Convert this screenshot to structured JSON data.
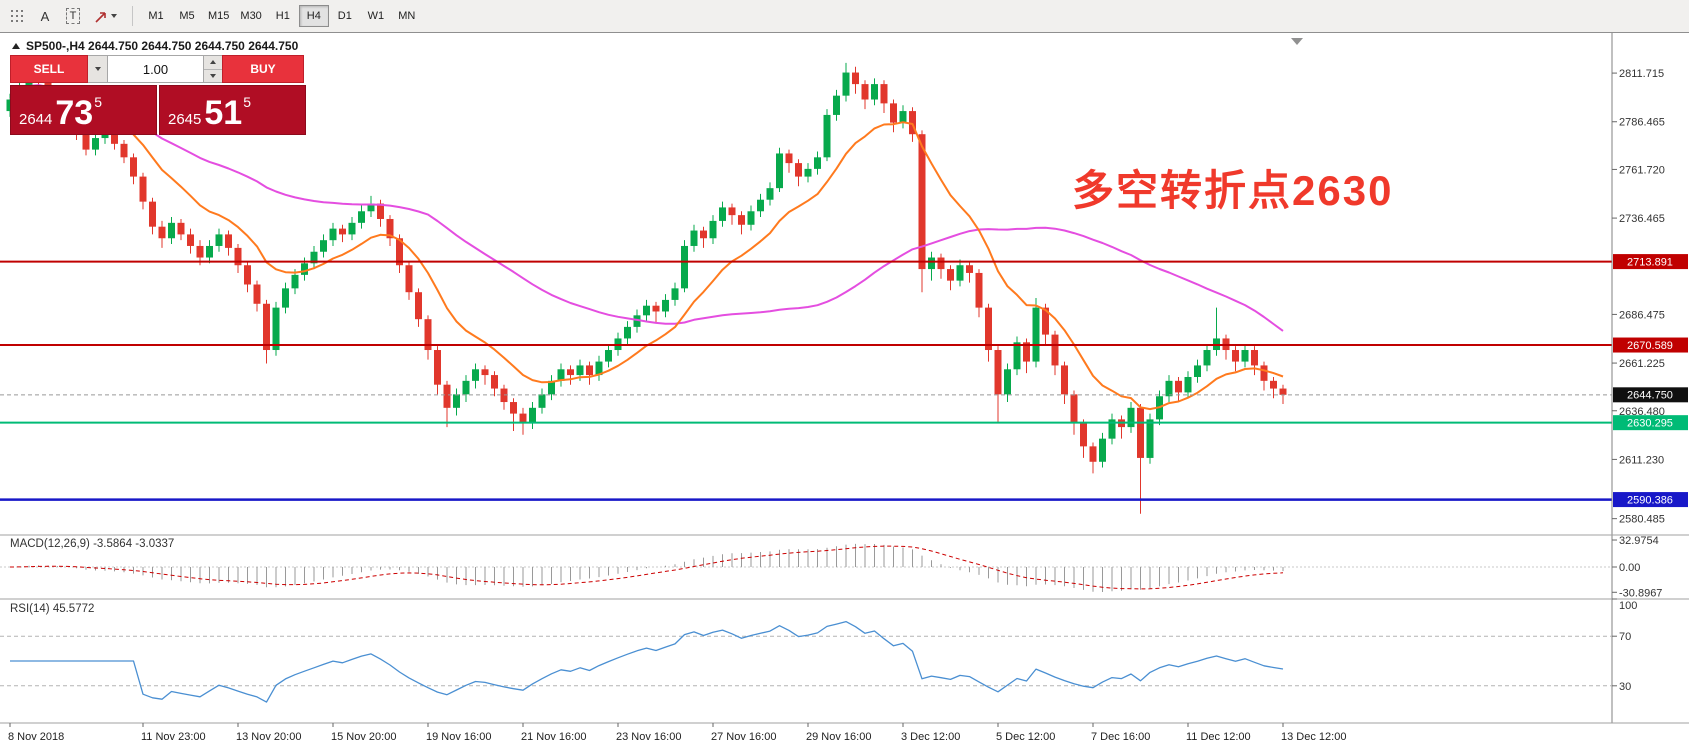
{
  "toolbar": {
    "label_tool": "A",
    "text_tool": "T",
    "timeframes": [
      "M1",
      "M5",
      "M15",
      "M30",
      "H1",
      "H4",
      "D1",
      "W1",
      "MN"
    ],
    "active_timeframe": "H4"
  },
  "chart": {
    "header_text": "SP500-,H4  2644.750 2644.750 2644.750 2644.750"
  },
  "trade_panel": {
    "sell_label": "SELL",
    "buy_label": "BUY",
    "volume": "1.00",
    "bid": {
      "big": "2644",
      "pips": "73",
      "frac": "5"
    },
    "ask": {
      "big": "2645",
      "pips": "51",
      "frac": "5"
    }
  },
  "annotation": {
    "text": "多空转折点2630",
    "color": "#f0392b"
  },
  "indicator_labels": {
    "macd": "MACD(12,26,9) -3.5864 -3.0337",
    "rsi": "RSI(14) 45.5772"
  },
  "colors": {
    "sell_buy_button": "#e8323c",
    "price_box": "#b00d24",
    "bull": "#07a94c",
    "bear": "#e1372c",
    "hline_red": "#c00000",
    "hline_green": "#00bb76",
    "hline_blue": "#1818c8",
    "annotation_red": "#f0392b",
    "macd_signal": "#cc0000",
    "rsi_line": "#4a8fd2"
  },
  "chart_data": {
    "type": "candlestick",
    "symbol": "SP500-",
    "timeframe": "H4",
    "last_price": "2644.750",
    "price_range": [
      2572,
      2832
    ],
    "price_ticks": [
      "2811.715",
      "2786.465",
      "2761.720",
      "2736.465",
      "2686.475",
      "2661.225",
      "2636.480",
      "2611.230",
      "2580.485"
    ],
    "hlines": [
      {
        "price": 2713.891,
        "label": "2713.891",
        "color": "#c00000",
        "width": 2
      },
      {
        "price": 2670.589,
        "label": "2670.589",
        "color": "#c00000",
        "width": 2
      },
      {
        "price": 2630.295,
        "label": "2630.295",
        "color": "#00bb76",
        "width": 2
      },
      {
        "price": 2590.386,
        "label": "2590.386",
        "color": "#1818c8",
        "width": 2.5
      }
    ],
    "current_price": {
      "price": 2644.75,
      "label": "2644.750",
      "color": "#101010"
    },
    "moving_averages": [
      {
        "period": 45,
        "method": "sma",
        "color": "#e44ee0"
      },
      {
        "period": 12,
        "method": "ema",
        "color": "#ff7a1e"
      }
    ],
    "macd": {
      "params": "12,26,9",
      "values": [
        "-3.5864",
        "-3.0337"
      ],
      "axis_ticks": [
        "32.9754",
        "0.00",
        "-30.8967"
      ],
      "range": 33
    },
    "rsi": {
      "period": 14,
      "value": "45.5772",
      "axis_ticks": [
        "100",
        "70",
        "30"
      ],
      "levels": [
        70,
        30
      ]
    },
    "time_labels": [
      {
        "label": "8 Nov 2018",
        "bar": 0
      },
      {
        "label": "11 Nov 23:00",
        "bar": 14
      },
      {
        "label": "13 Nov 20:00",
        "bar": 24
      },
      {
        "label": "15 Nov 20:00",
        "bar": 34
      },
      {
        "label": "19 Nov 16:00",
        "bar": 44
      },
      {
        "label": "21 Nov 16:00",
        "bar": 54
      },
      {
        "label": "23 Nov 16:00",
        "bar": 64
      },
      {
        "label": "27 Nov 16:00",
        "bar": 74
      },
      {
        "label": "29 Nov 16:00",
        "bar": 84
      },
      {
        "label": "3 Dec 12:00",
        "bar": 94
      },
      {
        "label": "5 Dec 12:00",
        "bar": 104
      },
      {
        "label": "7 Dec 16:00",
        "bar": 114
      },
      {
        "label": "11 Dec 12:00",
        "bar": 124
      },
      {
        "label": "13 Dec 12:00",
        "bar": 134
      }
    ],
    "candles": [
      [
        2792,
        2801,
        2789,
        2798
      ],
      [
        2798,
        2808,
        2795,
        2805
      ],
      [
        2805,
        2815,
        2802,
        2812
      ],
      [
        2812,
        2814,
        2803,
        2807
      ],
      [
        2807,
        2810,
        2798,
        2801
      ],
      [
        2801,
        2804,
        2793,
        2796
      ],
      [
        2796,
        2798,
        2785,
        2788
      ],
      [
        2788,
        2791,
        2777,
        2780
      ],
      [
        2780,
        2783,
        2769,
        2772
      ],
      [
        2772,
        2781,
        2769,
        2778
      ],
      [
        2778,
        2784,
        2775,
        2781
      ],
      [
        2781,
        2783,
        2772,
        2775
      ],
      [
        2775,
        2777,
        2765,
        2768
      ],
      [
        2768,
        2770,
        2754,
        2758
      ],
      [
        2758,
        2760,
        2741,
        2745
      ],
      [
        2745,
        2747,
        2728,
        2732
      ],
      [
        2732,
        2735,
        2721,
        2726
      ],
      [
        2726,
        2737,
        2723,
        2734
      ],
      [
        2734,
        2736,
        2725,
        2728
      ],
      [
        2728,
        2731,
        2718,
        2722
      ],
      [
        2722,
        2725,
        2712,
        2716
      ],
      [
        2716,
        2725,
        2713,
        2722
      ],
      [
        2722,
        2731,
        2719,
        2728
      ],
      [
        2728,
        2730,
        2717,
        2721
      ],
      [
        2721,
        2723,
        2708,
        2712
      ],
      [
        2712,
        2714,
        2698,
        2702
      ],
      [
        2702,
        2704,
        2688,
        2692
      ],
      [
        2692,
        2694,
        2661,
        2668
      ],
      [
        2668,
        2693,
        2665,
        2690
      ],
      [
        2690,
        2703,
        2687,
        2700
      ],
      [
        2700,
        2710,
        2697,
        2707
      ],
      [
        2707,
        2716,
        2704,
        2713
      ],
      [
        2713,
        2722,
        2710,
        2719
      ],
      [
        2719,
        2728,
        2716,
        2725
      ],
      [
        2725,
        2734,
        2722,
        2731
      ],
      [
        2731,
        2733,
        2724,
        2728
      ],
      [
        2728,
        2737,
        2725,
        2734
      ],
      [
        2734,
        2743,
        2731,
        2740
      ],
      [
        2740,
        2748,
        2737,
        2744
      ],
      [
        2744,
        2746,
        2732,
        2736
      ],
      [
        2736,
        2738,
        2722,
        2726
      ],
      [
        2726,
        2728,
        2708,
        2712
      ],
      [
        2712,
        2714,
        2694,
        2698
      ],
      [
        2698,
        2700,
        2680,
        2684
      ],
      [
        2684,
        2686,
        2663,
        2668
      ],
      [
        2668,
        2670,
        2645,
        2650
      ],
      [
        2650,
        2652,
        2628,
        2638
      ],
      [
        2638,
        2648,
        2634,
        2645
      ],
      [
        2645,
        2655,
        2641,
        2652
      ],
      [
        2652,
        2661,
        2648,
        2658
      ],
      [
        2658,
        2660,
        2650,
        2655
      ],
      [
        2655,
        2657,
        2644,
        2648
      ],
      [
        2648,
        2650,
        2637,
        2641
      ],
      [
        2641,
        2643,
        2626,
        2635
      ],
      [
        2635,
        2638,
        2624,
        2630
      ],
      [
        2630,
        2641,
        2627,
        2638
      ],
      [
        2638,
        2648,
        2635,
        2645
      ],
      [
        2645,
        2655,
        2642,
        2652
      ],
      [
        2652,
        2661,
        2649,
        2658
      ],
      [
        2658,
        2660,
        2650,
        2655
      ],
      [
        2655,
        2663,
        2652,
        2660
      ],
      [
        2660,
        2662,
        2650,
        2655
      ],
      [
        2655,
        2665,
        2652,
        2662
      ],
      [
        2662,
        2671,
        2659,
        2668
      ],
      [
        2668,
        2677,
        2665,
        2674
      ],
      [
        2674,
        2683,
        2671,
        2680
      ],
      [
        2680,
        2689,
        2677,
        2686
      ],
      [
        2686,
        2694,
        2683,
        2691
      ],
      [
        2691,
        2693,
        2682,
        2688
      ],
      [
        2688,
        2697,
        2685,
        2694
      ],
      [
        2694,
        2703,
        2691,
        2700
      ],
      [
        2700,
        2725,
        2698,
        2722
      ],
      [
        2722,
        2733,
        2719,
        2730
      ],
      [
        2730,
        2732,
        2721,
        2726
      ],
      [
        2726,
        2738,
        2723,
        2735
      ],
      [
        2735,
        2745,
        2732,
        2742
      ],
      [
        2742,
        2744,
        2733,
        2738
      ],
      [
        2738,
        2740,
        2728,
        2733
      ],
      [
        2733,
        2743,
        2730,
        2740
      ],
      [
        2740,
        2749,
        2737,
        2746
      ],
      [
        2746,
        2755,
        2743,
        2752
      ],
      [
        2752,
        2773,
        2750,
        2770
      ],
      [
        2770,
        2772,
        2760,
        2765
      ],
      [
        2765,
        2767,
        2753,
        2758
      ],
      [
        2758,
        2765,
        2755,
        2762
      ],
      [
        2762,
        2771,
        2759,
        2768
      ],
      [
        2768,
        2793,
        2766,
        2790
      ],
      [
        2790,
        2803,
        2787,
        2800
      ],
      [
        2800,
        2817,
        2797,
        2812
      ],
      [
        2812,
        2815,
        2801,
        2806
      ],
      [
        2806,
        2808,
        2793,
        2798
      ],
      [
        2798,
        2809,
        2795,
        2806
      ],
      [
        2806,
        2808,
        2791,
        2796
      ],
      [
        2796,
        2798,
        2781,
        2786
      ],
      [
        2786,
        2795,
        2783,
        2792
      ],
      [
        2792,
        2794,
        2776,
        2780
      ],
      [
        2780,
        2782,
        2698,
        2710
      ],
      [
        2710,
        2719,
        2704,
        2716
      ],
      [
        2716,
        2718,
        2705,
        2710
      ],
      [
        2710,
        2712,
        2699,
        2704
      ],
      [
        2704,
        2715,
        2701,
        2712
      ],
      [
        2712,
        2714,
        2703,
        2708
      ],
      [
        2708,
        2710,
        2685,
        2690
      ],
      [
        2690,
        2692,
        2662,
        2668
      ],
      [
        2668,
        2670,
        2630,
        2645
      ],
      [
        2645,
        2661,
        2641,
        2658
      ],
      [
        2658,
        2675,
        2655,
        2672
      ],
      [
        2672,
        2674,
        2656,
        2662
      ],
      [
        2662,
        2695,
        2659,
        2690
      ],
      [
        2690,
        2692,
        2671,
        2676
      ],
      [
        2676,
        2678,
        2655,
        2660
      ],
      [
        2660,
        2662,
        2640,
        2645
      ],
      [
        2645,
        2647,
        2624,
        2630
      ],
      [
        2630,
        2632,
        2612,
        2618
      ],
      [
        2618,
        2620,
        2604,
        2610
      ],
      [
        2610,
        2625,
        2607,
        2622
      ],
      [
        2622,
        2635,
        2619,
        2632
      ],
      [
        2632,
        2634,
        2622,
        2628
      ],
      [
        2628,
        2641,
        2625,
        2638
      ],
      [
        2638,
        2640,
        2583,
        2612
      ],
      [
        2612,
        2635,
        2609,
        2632
      ],
      [
        2632,
        2647,
        2629,
        2644
      ],
      [
        2644,
        2655,
        2641,
        2652
      ],
      [
        2652,
        2654,
        2641,
        2646
      ],
      [
        2646,
        2657,
        2643,
        2654
      ],
      [
        2654,
        2663,
        2651,
        2660
      ],
      [
        2660,
        2671,
        2657,
        2668
      ],
      [
        2668,
        2690,
        2665,
        2674
      ],
      [
        2674,
        2676,
        2663,
        2668
      ],
      [
        2668,
        2670,
        2657,
        2662
      ],
      [
        2662,
        2671,
        2659,
        2668
      ],
      [
        2668,
        2670,
        2655,
        2660
      ],
      [
        2660,
        2662,
        2647,
        2652
      ],
      [
        2652,
        2654,
        2643,
        2648
      ],
      [
        2648,
        2650,
        2640,
        2644.75
      ]
    ],
    "colors": {
      "bull": "#07a94c",
      "bear": "#e1372c"
    }
  }
}
